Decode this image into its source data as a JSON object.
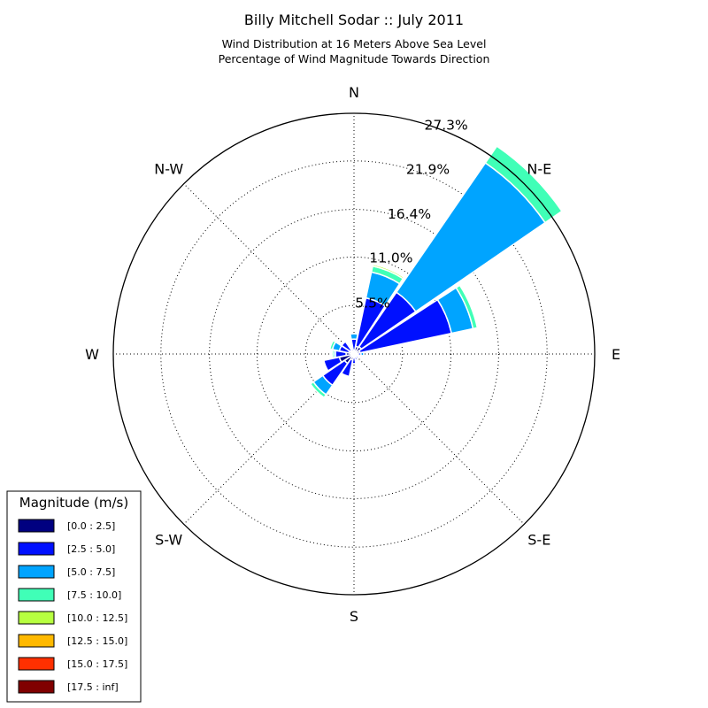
{
  "chart_data": {
    "type": "windrose",
    "title": "Billy Mitchell Sodar :: July 2011",
    "subtitle_lines": [
      "Wind Distribution at 16 Meters Above Sea Level",
      "Percentage of Wind Magnitude Towards Direction"
    ],
    "directions": [
      "N",
      "N-E",
      "E",
      "S-E",
      "S",
      "S-W",
      "W",
      "N-W"
    ],
    "radial_ticks": [
      "5.5%",
      "11.0%",
      "16.4%",
      "21.9%",
      "27.3%"
    ],
    "rmax": 27.3,
    "grid": true,
    "legend": {
      "title": "Magnitude (m/s)",
      "placement": "bottom-left",
      "entries": [
        "[0.0 : 2.5]",
        "[2.5 : 5.0]",
        "[5.0 : 7.5]",
        "[7.5 : 10.0]",
        "[10.0 : 12.5]",
        "[12.5 : 15.0]",
        "[15.0 : 17.5]",
        "[17.5 : inf]"
      ],
      "colors": [
        "#000080",
        "#0010ff",
        "#00a4ff",
        "#40ffb7",
        "#b7ff40",
        "#ffb900",
        "#ff3000",
        "#800000"
      ]
    },
    "bin_directions_deg": [
      0,
      22.5,
      45,
      67.5,
      90,
      112.5,
      135,
      157.5,
      180,
      202.5,
      225,
      247.5,
      270,
      292.5,
      315,
      337.5
    ],
    "series": [
      {
        "name": "[0.0 : 2.5]",
        "values": [
          0.4,
          0.9,
          1.0,
          0.7,
          0.5,
          0.4,
          0.3,
          0.3,
          0.4,
          0.7,
          1.3,
          1.7,
          0.9,
          0.6,
          0.5,
          0.4
        ]
      },
      {
        "name": "[2.5 : 5.0]",
        "values": [
          1.3,
          5.6,
          7.5,
          10.6,
          0.3,
          0.0,
          0.3,
          0.4,
          0.7,
          1.9,
          3.0,
          1.8,
          1.2,
          1.1,
          1.2,
          0.2
        ]
      },
      {
        "name": "[5.0 : 7.5]",
        "values": [
          0.6,
          3.0,
          17.8,
          2.5,
          0.3,
          0.0,
          0.0,
          0.0,
          0.0,
          0.0,
          1.3,
          0.0,
          0.2,
          0.8,
          0.0,
          0.0
        ]
      },
      {
        "name": "[7.5 : 10.0]",
        "values": [
          0.0,
          0.7,
          2.3,
          0.5,
          0.0,
          0.0,
          0.0,
          0.0,
          0.0,
          0.0,
          0.4,
          0.0,
          0.2,
          0.3,
          0.0,
          0.0
        ]
      },
      {
        "name": "[10.0 : 12.5]",
        "values": [
          0.0,
          0.2,
          0.0,
          0.0,
          0.0,
          0.0,
          0.0,
          0.0,
          0.0,
          0.0,
          0.0,
          0.0,
          0.0,
          0.0,
          0.0,
          0.0
        ]
      },
      {
        "name": "[12.5 : 15.0]",
        "values": [
          0.0,
          0.1,
          0.0,
          0.0,
          0.0,
          0.0,
          0.0,
          0.0,
          0.0,
          0.0,
          0.0,
          0.0,
          0.0,
          0.0,
          0.0,
          0.0
        ]
      },
      {
        "name": "[15.0 : 17.5]",
        "values": [
          0.0,
          0.0,
          0.0,
          0.0,
          0.0,
          0.0,
          0.0,
          0.0,
          0.0,
          0.0,
          0.0,
          0.0,
          0.0,
          0.0,
          0.0,
          0.0
        ]
      },
      {
        "name": "[17.5 : inf]",
        "values": [
          0.0,
          0.0,
          0.0,
          0.0,
          0.0,
          0.0,
          0.0,
          0.0,
          0.0,
          0.0,
          0.0,
          0.0,
          0.0,
          0.0,
          0.0,
          0.0
        ]
      }
    ]
  }
}
